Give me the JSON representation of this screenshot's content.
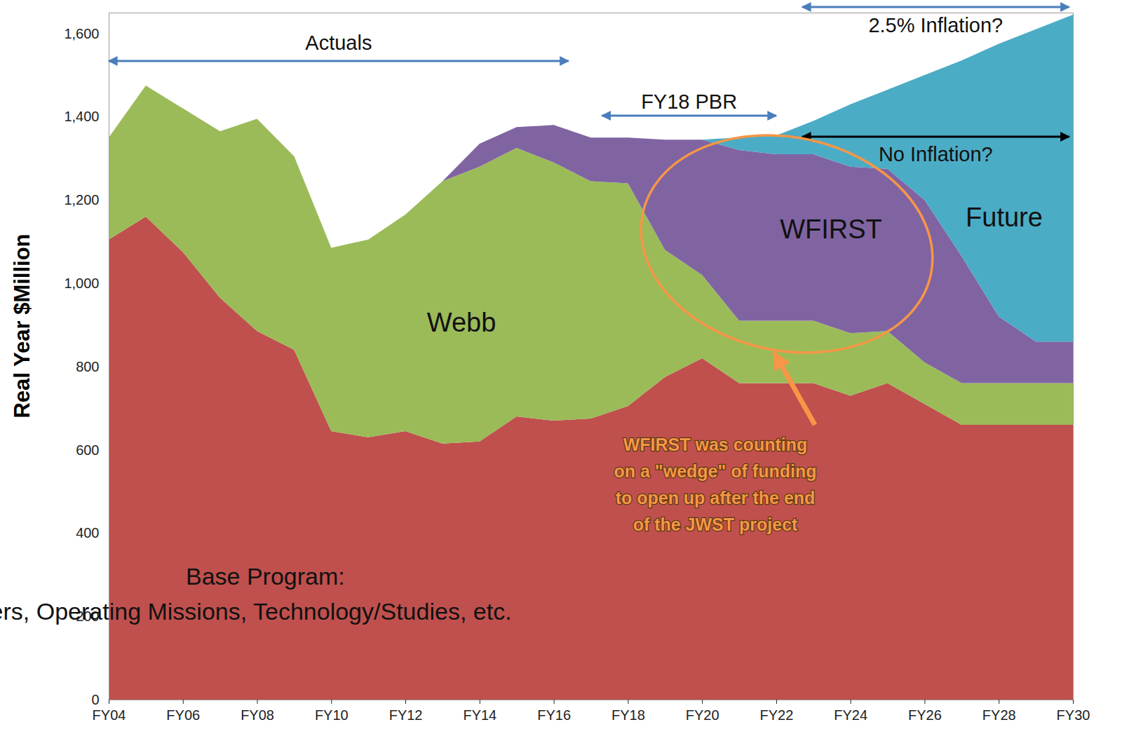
{
  "chart_data": {
    "type": "area",
    "stacked": true,
    "grid": false,
    "ylabel": "Real Year $Million",
    "x": [
      2004,
      2005,
      2006,
      2007,
      2008,
      2009,
      2010,
      2011,
      2012,
      2013,
      2014,
      2015,
      2016,
      2017,
      2018,
      2019,
      2020,
      2021,
      2022,
      2023,
      2024,
      2025,
      2026,
      2027,
      2028,
      2029,
      2030
    ],
    "xlim": [
      2004,
      2030
    ],
    "xticks": [
      {
        "value": 2004,
        "label": "FY04"
      },
      {
        "value": 2006,
        "label": "FY06"
      },
      {
        "value": 2008,
        "label": "FY08"
      },
      {
        "value": 2010,
        "label": "FY10"
      },
      {
        "value": 2012,
        "label": "FY12"
      },
      {
        "value": 2014,
        "label": "FY14"
      },
      {
        "value": 2016,
        "label": "FY16"
      },
      {
        "value": 2018,
        "label": "FY18"
      },
      {
        "value": 2020,
        "label": "FY20"
      },
      {
        "value": 2022,
        "label": "FY22"
      },
      {
        "value": 2024,
        "label": "FY24"
      },
      {
        "value": 2026,
        "label": "FY26"
      },
      {
        "value": 2028,
        "label": "FY28"
      },
      {
        "value": 2030,
        "label": "FY30"
      }
    ],
    "ylim": [
      0,
      1650
    ],
    "yticks": [
      0,
      200,
      400,
      600,
      800,
      {
        "value": 1000,
        "label": "1,000"
      },
      {
        "value": 1200,
        "label": "1,200"
      },
      {
        "value": 1400,
        "label": "1,400"
      },
      {
        "value": 1600,
        "label": "1,600"
      }
    ],
    "series": [
      {
        "name": "Base Program:",
        "color": "#c0504d",
        "values": [
          1105,
          1160,
          1075,
          965,
          885,
          840,
          645,
          630,
          645,
          615,
          620,
          680,
          670,
          675,
          705,
          775,
          820,
          760,
          760,
          760,
          730,
          760,
          710,
          660,
          660,
          660,
          660
        ]
      },
      {
        "name": "Webb",
        "color": "#9bbb59",
        "values": [
          245,
          315,
          345,
          400,
          510,
          465,
          440,
          475,
          520,
          630,
          660,
          645,
          620,
          570,
          535,
          305,
          200,
          150,
          150,
          150,
          150,
          125,
          100,
          100,
          100,
          100,
          100
        ]
      },
      {
        "name": "WFIRST",
        "color": "#8064a2",
        "values": [
          0,
          0,
          0,
          0,
          0,
          0,
          0,
          0,
          0,
          0,
          55,
          50,
          90,
          105,
          110,
          265,
          325,
          410,
          400,
          400,
          400,
          390,
          390,
          305,
          160,
          100,
          100
        ]
      },
      {
        "name": "Future",
        "color": "#4bacc6",
        "values": [
          0,
          0,
          0,
          0,
          0,
          0,
          0,
          0,
          0,
          0,
          0,
          0,
          0,
          0,
          0,
          0,
          0,
          30,
          45,
          80,
          150,
          190,
          300,
          470,
          655,
          750,
          785
        ]
      }
    ],
    "periods": [
      {
        "label": "Actuals",
        "start": 2004,
        "end": 2016.4,
        "color": "#4a7ebb"
      },
      {
        "label": "FY18 PBR",
        "start": 2017.3,
        "end": 2022,
        "color": "#4a7ebb"
      },
      {
        "label": "2.5% Inflation?",
        "start": 2022.7,
        "end": 2029.9,
        "color": "#4a7ebb"
      },
      {
        "label": "No Inflation?",
        "start": 2022.7,
        "end": 2029.9,
        "color": "#000000"
      }
    ],
    "annotations": [
      {
        "text": [
          "R&A, Explorers, Operating Missions, Technology/Studies, etc."
        ]
      },
      {
        "text": [
          "WFIRST was counting",
          "on a \"wedge\" of funding",
          "to open up after the end",
          "of the JWST project"
        ],
        "color": "#f79646"
      }
    ]
  }
}
